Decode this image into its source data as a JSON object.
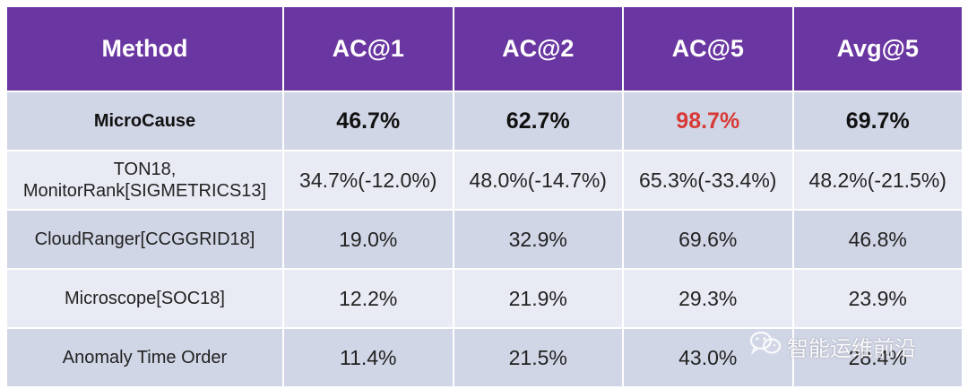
{
  "table": {
    "headers": [
      "Method",
      "AC@1",
      "AC@2",
      "AC@5",
      "Avg@5"
    ],
    "rows": [
      {
        "method": "MicroCause",
        "ac1": "46.7%",
        "ac2": "62.7%",
        "ac5": "98.7%",
        "avg5": "69.7%"
      },
      {
        "method_line1": "TON18,",
        "method_line2": "MonitorRank[SIGMETRICS13]",
        "ac1": "34.7%(-12.0%)",
        "ac2": "48.0%(-14.7%)",
        "ac5": "65.3%(-33.4%)",
        "avg5": "48.2%(-21.5%)"
      },
      {
        "method": "CloudRanger[CCGGRID18]",
        "ac1": "19.0%",
        "ac2": "32.9%",
        "ac5": "69.6%",
        "avg5": "46.8%"
      },
      {
        "method": "Microscope[SOC18]",
        "ac1": "12.2%",
        "ac2": "21.9%",
        "ac5": "29.3%",
        "avg5": "23.9%"
      },
      {
        "method": "Anomaly Time Order",
        "ac1": "11.4%",
        "ac2": "21.5%",
        "ac5": "43.0%",
        "avg5": "28.4%"
      }
    ]
  },
  "colors": {
    "header_bg": "#6a37a2",
    "row_dark": "#d1d6e6",
    "row_light": "#e9ebf4",
    "highlight": "#d73a36"
  },
  "watermark": {
    "icon": "wechat-icon",
    "text": "智能运维前沿"
  }
}
